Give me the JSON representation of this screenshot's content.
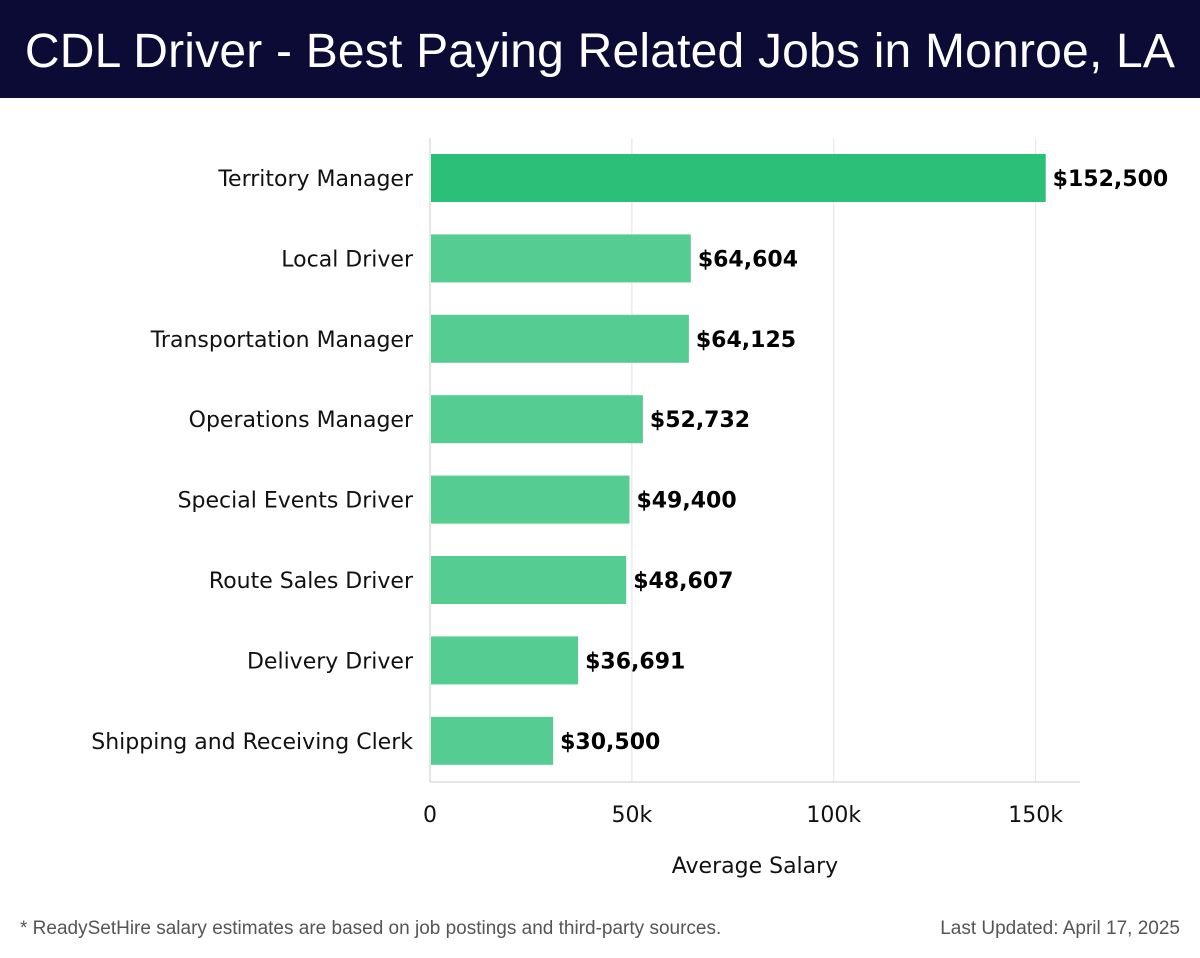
{
  "header": {
    "title": "CDL Driver - Best Paying Related Jobs in Monroe, LA"
  },
  "chart_data": {
    "type": "bar",
    "orientation": "horizontal",
    "title": "CDL Driver - Best Paying Related Jobs in Monroe, LA",
    "xlabel": "Average Salary",
    "ylabel": "",
    "xlim": [
      0,
      161000
    ],
    "grid": true,
    "x_ticks": [
      {
        "value": 0,
        "label": "0"
      },
      {
        "value": 50000,
        "label": "50k"
      },
      {
        "value": 100000,
        "label": "100k"
      },
      {
        "value": 150000,
        "label": "150k"
      }
    ],
    "categories": [
      "Territory Manager",
      "Local Driver",
      "Transportation Manager",
      "Operations Manager",
      "Special Events Driver",
      "Route Sales Driver",
      "Delivery Driver",
      "Shipping and Receiving Clerk"
    ],
    "values": [
      152500,
      64604,
      64125,
      52732,
      49400,
      48607,
      36691,
      30500
    ],
    "value_labels": [
      "$152,500",
      "$64,604",
      "$64,125",
      "$52,732",
      "$49,400",
      "$48,607",
      "$36,691",
      "$30,500"
    ],
    "colors": {
      "highlight": "#2bbf77",
      "bar": "#55cc91",
      "grid": "#e3e3e3",
      "axis": "#cccccc"
    }
  },
  "footer": {
    "note": "* ReadySetHire salary estimates are based on job postings and third-party sources.",
    "updated": "Last Updated: April 17, 2025"
  }
}
